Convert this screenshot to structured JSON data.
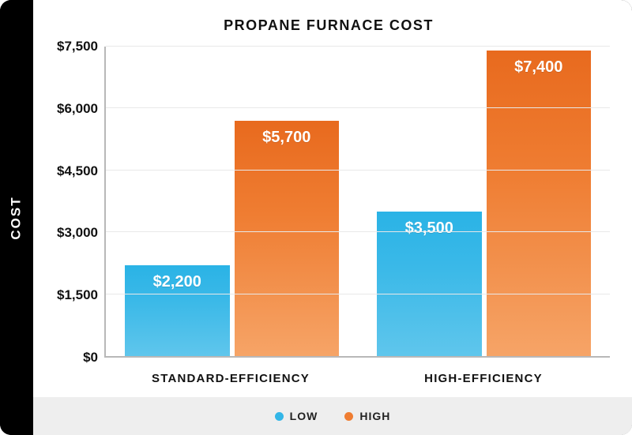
{
  "chart": {
    "type": "bar-grouped",
    "title": "PROPANE FURNACE COST",
    "ylabel": "COST",
    "background_color": "#ffffff",
    "frame_color": "#000000",
    "axis_color": "#b8b8b8",
    "grid_color": "#e8e8e8",
    "ylim": [
      0,
      7500
    ],
    "ytick_step": 1500,
    "yticks": [
      {
        "v": 0,
        "label": "$0"
      },
      {
        "v": 1500,
        "label": "$1,500"
      },
      {
        "v": 3000,
        "label": "$3,000"
      },
      {
        "v": 4500,
        "label": "$4,500"
      },
      {
        "v": 6000,
        "label": "$6,000"
      },
      {
        "v": 7500,
        "label": "$7,500"
      }
    ],
    "series": [
      {
        "key": "low",
        "label": "LOW",
        "swatch": "#33b6e7",
        "gradient_top": "#2ab3e6",
        "gradient_bottom": "#5fc6ec"
      },
      {
        "key": "high",
        "label": "HIGH",
        "swatch": "#ef7d32",
        "gradient_top": "#e86a1e",
        "gradient_bottom": "#f6a467"
      }
    ],
    "categories": [
      {
        "label": "STANDARD-EFFICIENCY",
        "low": {
          "value": 2200,
          "display": "$2,200"
        },
        "high": {
          "value": 5700,
          "display": "$5,700"
        }
      },
      {
        "label": "HIGH-EFFICIENCY",
        "low": {
          "value": 3500,
          "display": "$3,500"
        },
        "high": {
          "value": 7400,
          "display": "$7,400"
        }
      }
    ],
    "legend_background": "#eeeeee",
    "title_fontsize": 18,
    "value_fontsize": 20,
    "tick_fontsize": 17,
    "xtick_fontsize": 15,
    "legend_fontsize": 14,
    "typeface": "Arial"
  }
}
